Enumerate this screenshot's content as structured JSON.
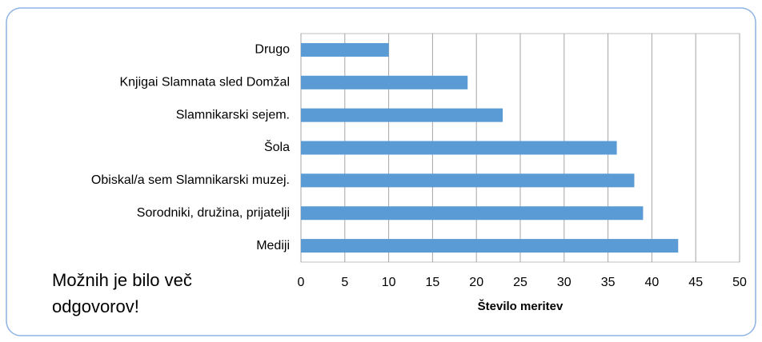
{
  "chart_data": {
    "type": "bar",
    "orientation": "horizontal",
    "categories": [
      "Drugo",
      "Knjigai Slamnata sled Domžal",
      "Slamnikarski sejem.",
      "Šola",
      "Obiskal/a sem Slamnikarski muzej.",
      "Sorodniki, družina, prijatelji",
      "Mediji"
    ],
    "values": [
      10,
      19,
      23,
      36,
      38,
      39,
      43
    ],
    "color": "#5b9bd5",
    "xlabel": "Število meritev",
    "xlim": [
      0,
      50
    ],
    "xticks": [
      0,
      5,
      10,
      15,
      20,
      25,
      30,
      35,
      40,
      45,
      50
    ],
    "grid": true,
    "annotation": [
      "Možnih je bilo več",
      "odgovorov!"
    ]
  }
}
